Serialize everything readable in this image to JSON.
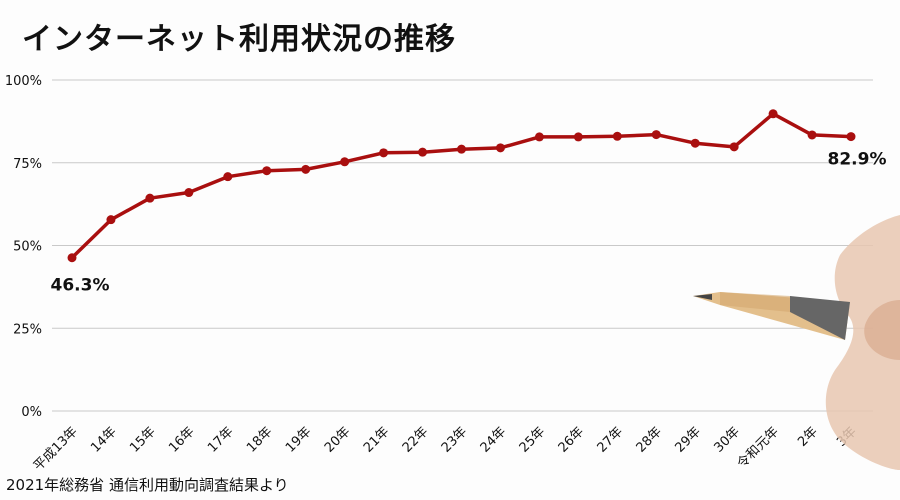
{
  "title": "インターネット利用状況の推移",
  "source": "2021年総務省 通信利用動向調査結果より",
  "colors": {
    "line": "#a90f0f",
    "grid": "#c9c9c9"
  },
  "chart_data": {
    "type": "line",
    "title": "インターネット利用状況の推移",
    "xlabel": "",
    "ylabel": "",
    "ylim": [
      0,
      100
    ],
    "yticks": [
      "0%",
      "25%",
      "50%",
      "75%",
      "100%"
    ],
    "categories": [
      "平成13年",
      "14年",
      "15年",
      "16年",
      "17年",
      "18年",
      "19年",
      "20年",
      "21年",
      "22年",
      "23年",
      "24年",
      "25年",
      "26年",
      "27年",
      "28年",
      "29年",
      "30年",
      "令和元年",
      "2年",
      "3年"
    ],
    "values": [
      46.3,
      57.8,
      64.3,
      66.0,
      70.8,
      72.6,
      73.0,
      75.3,
      78.0,
      78.2,
      79.1,
      79.5,
      82.8,
      82.8,
      83.0,
      83.5,
      80.9,
      79.8,
      89.8,
      83.4,
      82.9
    ],
    "grid": true,
    "data_labels": [
      {
        "index": 0,
        "text": "46.3%"
      },
      {
        "index": 20,
        "text": "82.9%"
      }
    ]
  }
}
